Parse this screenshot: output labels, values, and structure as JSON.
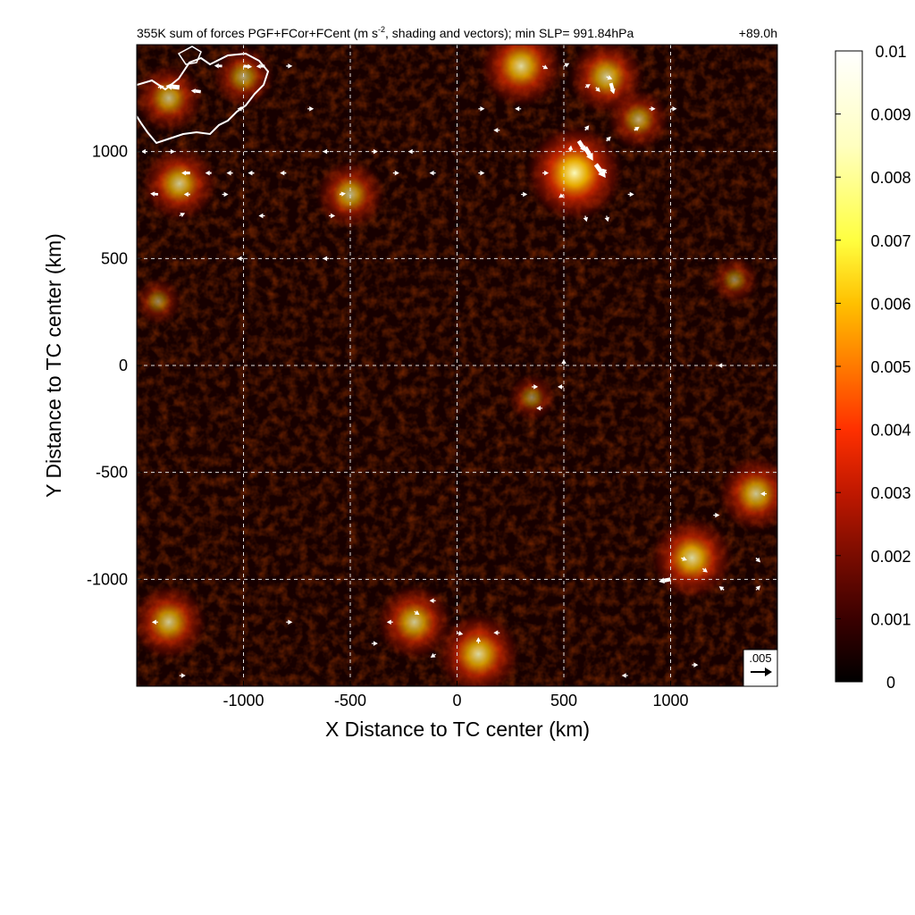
{
  "chart_data": {
    "type": "heatmap",
    "title": "355K sum of forces PGF+FCor+FCent (m s",
    "title_sup": "-2",
    "title_rest": ", shading and vectors); min SLP= 991.84hPa",
    "time_label": "+89.0h",
    "xlabel": "X Distance to TC center (km)",
    "ylabel": "Y Distance to TC center (km)",
    "xlim": [
      -1500,
      1500
    ],
    "ylim": [
      -1500,
      1500
    ],
    "x_ticks": [
      -1000,
      -500,
      0,
      500,
      1000
    ],
    "y_ticks": [
      -1000,
      -500,
      0,
      500,
      1000
    ],
    "x_tick_labels": [
      "-1000",
      "-500",
      "0",
      "500",
      "1000"
    ],
    "y_tick_labels": [
      "-1000",
      "-500",
      "0",
      "500",
      "1000"
    ],
    "grid": "dashed",
    "colorbar": {
      "min": 0,
      "max": 0.01,
      "ticks": [
        0.01,
        0.009,
        0.008,
        0.007,
        0.006,
        0.005,
        0.004,
        0.003,
        0.002,
        0.001,
        0
      ],
      "tick_labels": [
        "0.01",
        "0.009",
        "0.008",
        "0.007",
        "0.006",
        "0.005",
        "0.004",
        "0.003",
        "0.002",
        "0.001",
        "0"
      ],
      "colormap": [
        "#000000",
        "#3a0000",
        "#7a0c00",
        "#c01800",
        "#ff3000",
        "#ff7a00",
        "#ffc000",
        "#ffff40",
        "#ffffc0",
        "#ffffff"
      ]
    },
    "reference_vector": {
      "value": 0.005,
      "label": ".005"
    },
    "hotspots": [
      {
        "x": -1350,
        "y": 1250,
        "value": 0.005
      },
      {
        "x": -1300,
        "y": 850,
        "value": 0.006
      },
      {
        "x": -1000,
        "y": 1350,
        "value": 0.004
      },
      {
        "x": -500,
        "y": 800,
        "value": 0.005
      },
      {
        "x": 300,
        "y": 1400,
        "value": 0.007
      },
      {
        "x": 550,
        "y": 900,
        "value": 0.009
      },
      {
        "x": 700,
        "y": 1350,
        "value": 0.006
      },
      {
        "x": 850,
        "y": 1150,
        "value": 0.004
      },
      {
        "x": -1350,
        "y": -1200,
        "value": 0.006
      },
      {
        "x": -200,
        "y": -1200,
        "value": 0.006
      },
      {
        "x": 100,
        "y": -1350,
        "value": 0.007
      },
      {
        "x": 1100,
        "y": -900,
        "value": 0.007
      },
      {
        "x": 1400,
        "y": -600,
        "value": 0.006
      },
      {
        "x": 350,
        "y": -150,
        "value": 0.002
      },
      {
        "x": -1400,
        "y": 300,
        "value": 0.002
      },
      {
        "x": 1300,
        "y": 400,
        "value": 0.002
      }
    ],
    "vectors": [
      {
        "x": -1400,
        "y": 1300,
        "u": 0.001,
        "v": 0.0002
      },
      {
        "x": -1300,
        "y": 1300,
        "u": -0.0035,
        "v": 0.0004
      },
      {
        "x": -1200,
        "y": 1280,
        "u": -0.0025,
        "v": 0.0003
      },
      {
        "x": -1100,
        "y": 1400,
        "u": -0.002,
        "v": 0.0001
      },
      {
        "x": -1000,
        "y": 1400,
        "u": 0.0022,
        "v": -0.0002
      },
      {
        "x": -900,
        "y": 1400,
        "u": -0.0022,
        "v": -0.0001
      },
      {
        "x": -800,
        "y": 1400,
        "u": 0.001,
        "v": 0.0
      },
      {
        "x": -1450,
        "y": 1000,
        "u": -0.0008,
        "v": 0.0
      },
      {
        "x": -1350,
        "y": 1000,
        "u": 0.0008,
        "v": 0.0
      },
      {
        "x": -1250,
        "y": 900,
        "u": -0.0022,
        "v": 0.0
      },
      {
        "x": -1150,
        "y": 900,
        "u": -0.0015,
        "v": 0.0
      },
      {
        "x": -1050,
        "y": 900,
        "u": -0.001,
        "v": 0.0
      },
      {
        "x": -950,
        "y": 900,
        "u": -0.0012,
        "v": 0.0
      },
      {
        "x": -800,
        "y": 900,
        "u": -0.0012,
        "v": 0.0
      },
      {
        "x": -1400,
        "y": 800,
        "u": -0.002,
        "v": 0.0002
      },
      {
        "x": -1250,
        "y": 800,
        "u": -0.0012,
        "v": 0.0
      },
      {
        "x": -1100,
        "y": 800,
        "u": 0.0008,
        "v": 0.0
      },
      {
        "x": -550,
        "y": 800,
        "u": 0.0012,
        "v": 0.0002
      },
      {
        "x": -1300,
        "y": 700,
        "u": 0.0008,
        "v": 0.0004
      },
      {
        "x": -900,
        "y": 700,
        "u": -0.0008,
        "v": 0.0
      },
      {
        "x": -600,
        "y": 700,
        "u": 0.0008,
        "v": 0.0
      },
      {
        "x": -1000,
        "y": 1200,
        "u": -0.0008,
        "v": 0.0
      },
      {
        "x": -700,
        "y": 1200,
        "u": 0.0008,
        "v": 0.0
      },
      {
        "x": -600,
        "y": 1000,
        "u": -0.0008,
        "v": 0.0
      },
      {
        "x": -400,
        "y": 1000,
        "u": 0.0006,
        "v": 0.0
      },
      {
        "x": -200,
        "y": 1000,
        "u": -0.0006,
        "v": 0.0
      },
      {
        "x": 100,
        "y": 1200,
        "u": 0.0008,
        "v": 0.0
      },
      {
        "x": 200,
        "y": 1100,
        "u": -0.0008,
        "v": 0.0
      },
      {
        "x": 300,
        "y": 1200,
        "u": -0.0006,
        "v": 0.0
      },
      {
        "x": 400,
        "y": 1400,
        "u": 0.0008,
        "v": -0.0004
      },
      {
        "x": 500,
        "y": 1400,
        "u": 0.0008,
        "v": 0.0004
      },
      {
        "x": 600,
        "y": 1300,
        "u": 0.0008,
        "v": 0.0005
      },
      {
        "x": 700,
        "y": 1350,
        "u": 0.001,
        "v": -0.0004
      },
      {
        "x": 650,
        "y": 1300,
        "u": 0.0008,
        "v": -0.0008
      },
      {
        "x": 720,
        "y": 1320,
        "u": 0.0008,
        "v": -0.0028
      },
      {
        "x": 600,
        "y": 1100,
        "u": 0.0008,
        "v": 0.001
      },
      {
        "x": 700,
        "y": 1050,
        "u": 0.001,
        "v": 0.001
      },
      {
        "x": 830,
        "y": 1100,
        "u": 0.0012,
        "v": 0.0008
      },
      {
        "x": 530,
        "y": 1000,
        "u": 0.0002,
        "v": 0.0016
      },
      {
        "x": 570,
        "y": 1050,
        "u": 0.0018,
        "v": -0.0028
      },
      {
        "x": 600,
        "y": 1020,
        "u": 0.002,
        "v": -0.0034
      },
      {
        "x": 650,
        "y": 940,
        "u": 0.0025,
        "v": -0.0034
      },
      {
        "x": 700,
        "y": 900,
        "u": -0.0008,
        "v": 0.0008
      },
      {
        "x": 400,
        "y": 900,
        "u": 0.0008,
        "v": 0.0
      },
      {
        "x": 300,
        "y": 800,
        "u": 0.0006,
        "v": 0.0
      },
      {
        "x": 500,
        "y": 800,
        "u": -0.0006,
        "v": -0.0004
      },
      {
        "x": 600,
        "y": 700,
        "u": 0.0002,
        "v": -0.0008
      },
      {
        "x": 700,
        "y": 700,
        "u": 0.0002,
        "v": -0.0008
      },
      {
        "x": 800,
        "y": 800,
        "u": 0.0006,
        "v": 0.0
      },
      {
        "x": 900,
        "y": 1200,
        "u": 0.0006,
        "v": 0.0
      },
      {
        "x": 1000,
        "y": 1200,
        "u": 0.0006,
        "v": 0.0
      },
      {
        "x": 100,
        "y": 900,
        "u": 0.0008,
        "v": 0.0
      },
      {
        "x": -100,
        "y": 900,
        "u": -0.0006,
        "v": 0.0
      },
      {
        "x": -300,
        "y": 900,
        "u": 0.0006,
        "v": 0.0
      },
      {
        "x": 500,
        "y": 0,
        "u": 0.0,
        "v": 0.0006
      },
      {
        "x": 500,
        "y": -100,
        "u": -0.0008,
        "v": 0.0
      },
      {
        "x": 400,
        "y": -200,
        "u": -0.0008,
        "v": 0.0
      },
      {
        "x": 350,
        "y": -100,
        "u": 0.0006,
        "v": 0.0
      },
      {
        "x": -600,
        "y": 500,
        "u": -0.0006,
        "v": 0.0
      },
      {
        "x": -1000,
        "y": 500,
        "u": -0.0006,
        "v": 0.0
      },
      {
        "x": 1250,
        "y": 0,
        "u": -0.0006,
        "v": 0.0
      },
      {
        "x": 1000,
        "y": -1000,
        "u": -0.003,
        "v": -0.0006
      },
      {
        "x": 1050,
        "y": -900,
        "u": 0.001,
        "v": -0.0004
      },
      {
        "x": 1150,
        "y": -950,
        "u": 0.0008,
        "v": -0.0006
      },
      {
        "x": 1250,
        "y": -1050,
        "u": -0.0008,
        "v": 0.0006
      },
      {
        "x": 1400,
        "y": -900,
        "u": 0.0008,
        "v": -0.0008
      },
      {
        "x": 1400,
        "y": -1050,
        "u": 0.0006,
        "v": 0.0006
      },
      {
        "x": 1450,
        "y": -600,
        "u": -0.0008,
        "v": 0.0
      },
      {
        "x": 1200,
        "y": -700,
        "u": 0.0006,
        "v": 0.0
      },
      {
        "x": -100,
        "y": -1100,
        "u": -0.0008,
        "v": 0.0
      },
      {
        "x": -200,
        "y": -1150,
        "u": 0.0006,
        "v": -0.0004
      },
      {
        "x": -300,
        "y": -1200,
        "u": -0.0006,
        "v": 0.0
      },
      {
        "x": 0,
        "y": -1250,
        "u": 0.0008,
        "v": -0.0002
      },
      {
        "x": 100,
        "y": -1300,
        "u": 0.0,
        "v": 0.0008
      },
      {
        "x": 200,
        "y": -1250,
        "u": -0.0006,
        "v": 0.0
      },
      {
        "x": -100,
        "y": -1350,
        "u": -0.0006,
        "v": -0.0004
      },
      {
        "x": -400,
        "y": -1300,
        "u": 0.0006,
        "v": 0.0
      },
      {
        "x": -800,
        "y": -1200,
        "u": 0.0006,
        "v": 0.0
      },
      {
        "x": -1400,
        "y": -1200,
        "u": -0.0006,
        "v": 0.0
      },
      {
        "x": -1300,
        "y": -1450,
        "u": 0.0006,
        "v": 0.0
      },
      {
        "x": 800,
        "y": -1450,
        "u": -0.0006,
        "v": 0.0
      },
      {
        "x": 1100,
        "y": -1400,
        "u": 0.0006,
        "v": 0.0
      }
    ]
  }
}
